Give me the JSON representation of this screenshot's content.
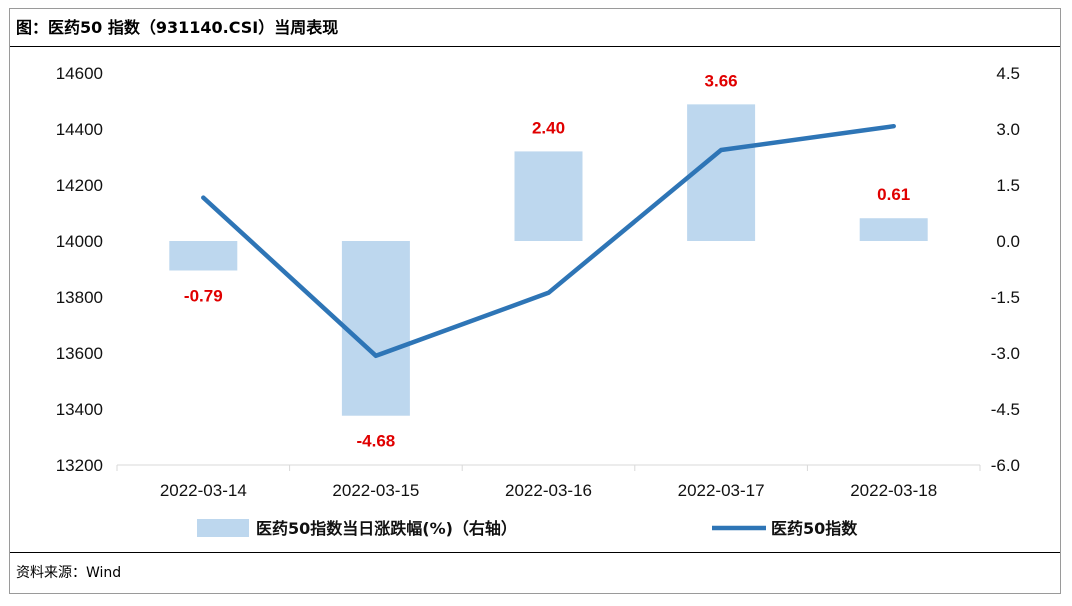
{
  "title": "图：医药50 指数（931140.CSI）当周表现",
  "source": "资料来源：Wind",
  "chart_data": {
    "type": "bar+line",
    "categories": [
      "2022-03-14",
      "2022-03-15",
      "2022-03-16",
      "2022-03-17",
      "2022-03-18"
    ],
    "series": [
      {
        "name": "医药50指数当日涨跌幅(%)（右轴）",
        "type": "bar",
        "axis": "right",
        "color": "#bdd7ee",
        "values": [
          -0.79,
          -4.68,
          2.4,
          3.66,
          0.61
        ],
        "labels": [
          "-0.79",
          "-4.68",
          "2.40",
          "3.66",
          "0.61"
        ],
        "label_color": "#e00000"
      },
      {
        "name": "医药50指数",
        "type": "line",
        "axis": "left",
        "color": "#2e75b6",
        "values": [
          14155,
          13590,
          13815,
          14325,
          14410
        ]
      }
    ],
    "left_axis": {
      "ylim": [
        13200,
        14600
      ],
      "ticks": [
        "13200",
        "13400",
        "13600",
        "13800",
        "14000",
        "14200",
        "14400",
        "14600"
      ]
    },
    "right_axis": {
      "ylim": [
        -6.0,
        4.5
      ],
      "ticks": [
        "-6.0",
        "-4.5",
        "-3.0",
        "-1.5",
        "0.0",
        "1.5",
        "3.0",
        "4.5"
      ]
    },
    "legend_position": "bottom",
    "grid": false
  }
}
